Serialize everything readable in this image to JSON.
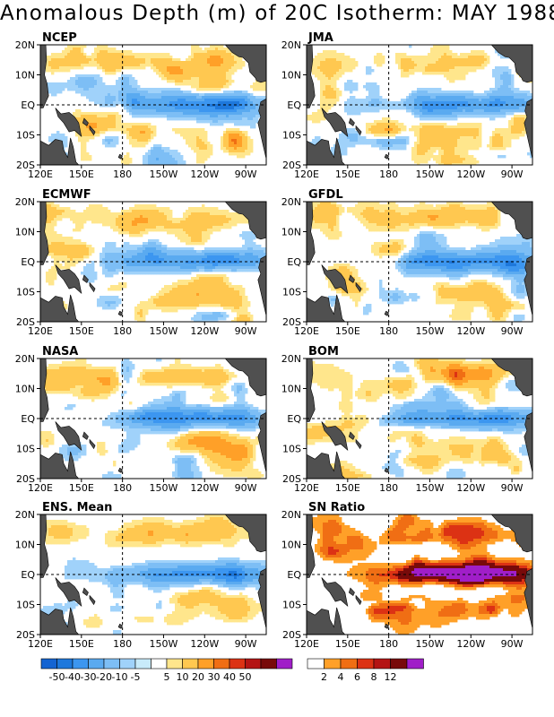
{
  "title": "Anomalous Depth (m) of 20C Isotherm: MAY 1988",
  "axes": {
    "x_ticks": [
      "120E",
      "150E",
      "180",
      "150W",
      "120W",
      "90W"
    ],
    "y_ticks": [
      "20N",
      "10N",
      "EQ",
      "10S",
      "20S"
    ]
  },
  "colors": {
    "land": "#505050",
    "neg": [
      "#1464d2",
      "#1e78dc",
      "#3c96f0",
      "#5aaaf0",
      "#7dbef5",
      "#a0d2fa",
      "#c8ebfa"
    ],
    "pos": [
      "#ffffff",
      "#ffe68c",
      "#ffc850",
      "#ffa028",
      "#f06e14",
      "#dc3214",
      "#b41414",
      "#780a0a",
      "#a01ec8"
    ],
    "sn": [
      "#ffffff",
      "#ffa028",
      "#f06e14",
      "#dc3214",
      "#b41414",
      "#780a0a",
      "#a01ec8"
    ]
  },
  "chart_data": [
    {
      "type": "heatmap",
      "title": "NCEP"
    },
    {
      "type": "heatmap",
      "title": "JMA"
    },
    {
      "type": "heatmap",
      "title": "ECMWF"
    },
    {
      "type": "heatmap",
      "title": "GFDL"
    },
    {
      "type": "heatmap",
      "title": "NASA"
    },
    {
      "type": "heatmap",
      "title": "BOM"
    },
    {
      "type": "heatmap",
      "title": "ENS. Mean"
    },
    {
      "type": "heatmap",
      "title": "SN Ratio"
    }
  ],
  "legend_anomaly": {
    "labels": [
      "-50",
      "-40",
      "-30",
      "-20",
      "-10",
      "-5",
      "5",
      "10",
      "20",
      "30",
      "40",
      "50"
    ]
  },
  "legend_sn": {
    "labels": [
      "2",
      "4",
      "6",
      "8",
      "12"
    ]
  }
}
